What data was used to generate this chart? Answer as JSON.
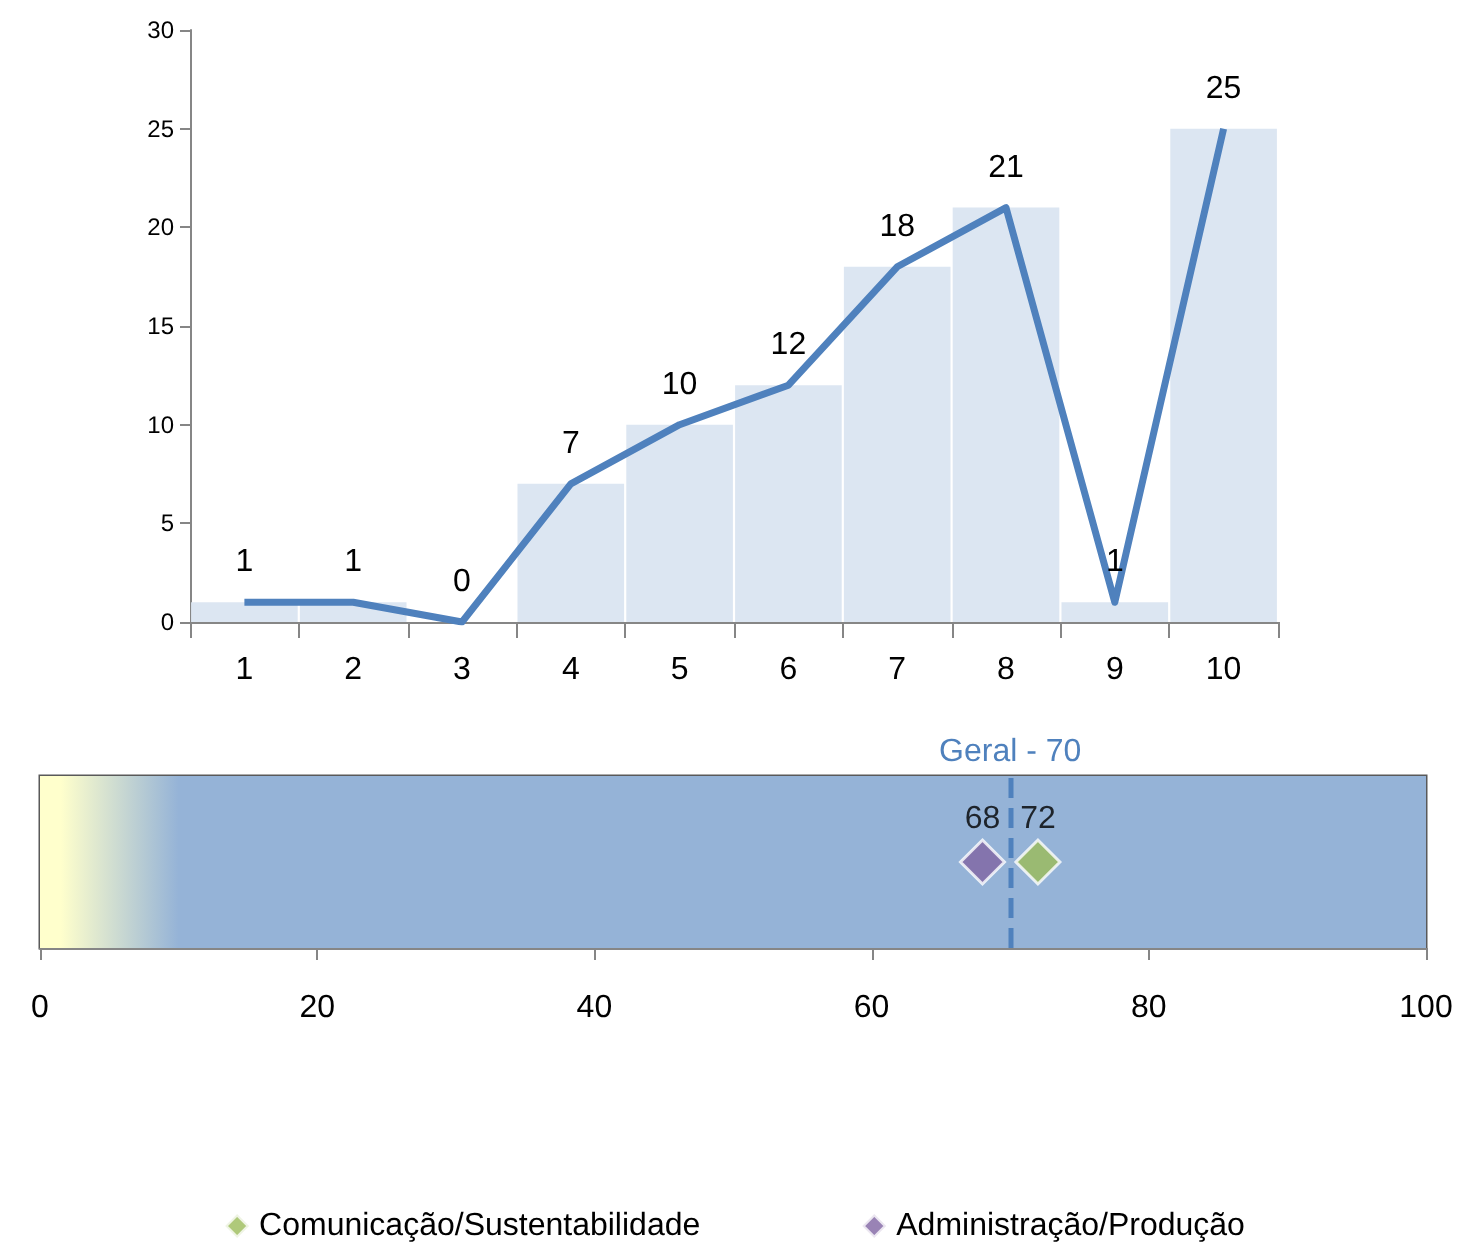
{
  "chart_data": [
    {
      "type": "bar",
      "categories": [
        "1",
        "2",
        "3",
        "4",
        "5",
        "6",
        "7",
        "8",
        "9",
        "10"
      ],
      "series": [
        {
          "type": "bar",
          "color": "#dce6f2",
          "values": [
            1,
            1,
            0,
            7,
            10,
            12,
            18,
            21,
            1,
            25
          ]
        },
        {
          "type": "line",
          "color": "#4f81bd",
          "values": [
            1,
            1,
            0,
            7,
            10,
            12,
            18,
            21,
            1,
            25
          ],
          "data_labels": true
        }
      ],
      "ylim": [
        0,
        30
      ],
      "yticks": [
        0,
        5,
        10,
        15,
        20,
        25,
        30
      ],
      "grid": false,
      "marker": "none"
    },
    {
      "type": "scatter",
      "orientation": "horizontal",
      "categories": [
        null
      ],
      "xlim": [
        0,
        100
      ],
      "xticks": [
        0,
        20,
        40,
        60,
        80,
        100
      ],
      "grid": false,
      "marker": "diamond",
      "legend": "bottom",
      "data_labels": true,
      "series": [
        {
          "name": "Comunicação/Sustentabilidade",
          "color": "#9bbb59",
          "values": [
            72
          ]
        },
        {
          "name": "Administração/Produção",
          "color": "#8064a2",
          "values": [
            68
          ]
        }
      ],
      "ref_lines": [
        {
          "axis": "x",
          "value": 70,
          "label": "Geral - 70",
          "color": "#4f81bd",
          "line_style": "dashed"
        }
      ],
      "bands": [
        {
          "axis": "x",
          "from": 0,
          "to": 100,
          "color": "#95b3d7"
        },
        {
          "axis": "x",
          "from": 0,
          "to": 10,
          "color": "#ffffcc"
        }
      ]
    }
  ]
}
